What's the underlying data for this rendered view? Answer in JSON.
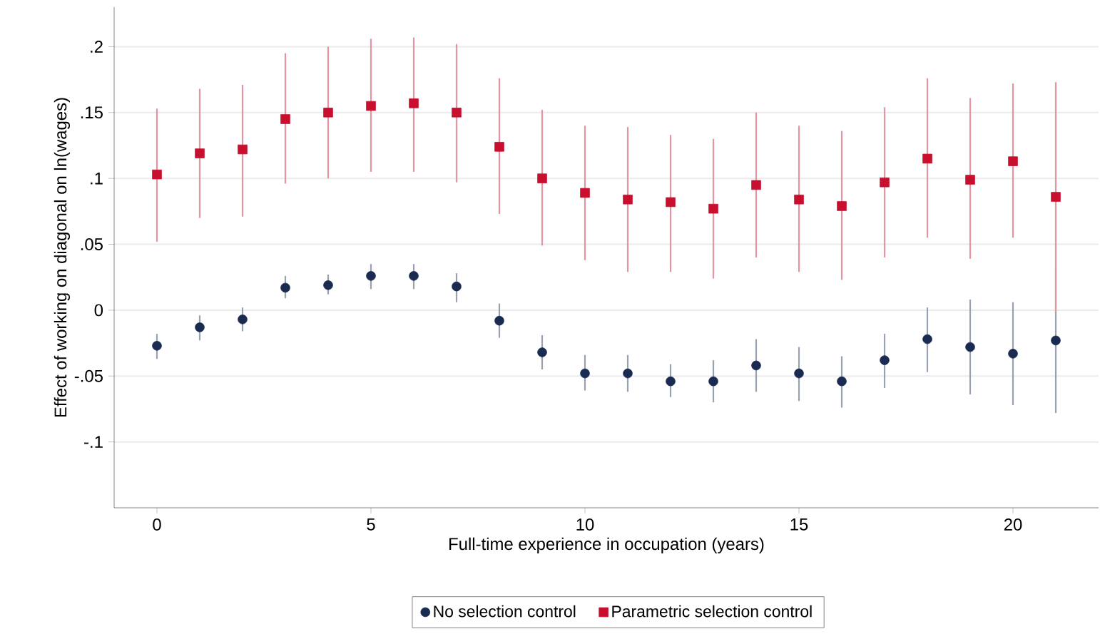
{
  "chart_data": {
    "type": "scatter",
    "xlabel": "Full-time experience in occupation (years)",
    "ylabel": "Effect of working on diagonal on ln(wages)",
    "x": [
      0,
      1,
      2,
      3,
      4,
      5,
      6,
      7,
      8,
      9,
      10,
      11,
      12,
      13,
      14,
      15,
      16,
      17,
      18,
      19,
      20,
      21
    ],
    "xlim": [
      -1,
      22
    ],
    "xticks": [
      0,
      5,
      10,
      15,
      20
    ],
    "ylim": [
      -0.15,
      0.23
    ],
    "yticks": [
      {
        "value": -0.1,
        "label": "-.1"
      },
      {
        "value": -0.05,
        "label": "-.05"
      },
      0,
      {
        "value": 0.05,
        "label": ".05"
      },
      {
        "value": 0.1,
        "label": ".1"
      },
      {
        "value": 0.15,
        "label": ".15"
      },
      {
        "value": 0.2,
        "label": ".2"
      }
    ],
    "grid": "y",
    "legend": "bottom",
    "series": [
      {
        "name": "No selection control",
        "color": "#1a2b52",
        "marker": "circle",
        "values": [
          -0.027,
          -0.013,
          -0.007,
          0.017,
          0.019,
          0.026,
          0.026,
          0.018,
          -0.008,
          -0.032,
          -0.048,
          -0.048,
          -0.054,
          -0.054,
          -0.042,
          -0.048,
          -0.054,
          -0.038,
          -0.022,
          -0.028,
          -0.033,
          -0.023
        ],
        "errors": [
          [
            -0.037,
            -0.018
          ],
          [
            -0.023,
            -0.004
          ],
          [
            -0.016,
            0.002
          ],
          [
            0.009,
            0.026
          ],
          [
            0.012,
            0.027
          ],
          [
            0.016,
            0.035
          ],
          [
            0.016,
            0.035
          ],
          [
            0.006,
            0.028
          ],
          [
            -0.021,
            0.005
          ],
          [
            -0.045,
            -0.019
          ],
          [
            -0.061,
            -0.034
          ],
          [
            -0.062,
            -0.034
          ],
          [
            -0.066,
            -0.041
          ],
          [
            -0.07,
            -0.038
          ],
          [
            -0.062,
            -0.022
          ],
          [
            -0.069,
            -0.028
          ],
          [
            -0.074,
            -0.035
          ],
          [
            -0.059,
            -0.018
          ],
          [
            -0.047,
            0.002
          ],
          [
            -0.064,
            0.008
          ],
          [
            -0.072,
            0.006
          ],
          [
            -0.078,
            0.032
          ]
        ]
      },
      {
        "name": "Parametric selection control",
        "color": "#c8102e",
        "marker": "square",
        "values": [
          0.103,
          0.119,
          0.122,
          0.145,
          0.15,
          0.155,
          0.157,
          0.15,
          0.124,
          0.1,
          0.089,
          0.084,
          0.082,
          0.077,
          0.095,
          0.084,
          0.079,
          0.097,
          0.115,
          0.099,
          0.113,
          0.086
        ],
        "errors": [
          [
            0.052,
            0.153
          ],
          [
            0.07,
            0.168
          ],
          [
            0.071,
            0.171
          ],
          [
            0.096,
            0.195
          ],
          [
            0.1,
            0.2
          ],
          [
            0.105,
            0.206
          ],
          [
            0.105,
            0.207
          ],
          [
            0.097,
            0.202
          ],
          [
            0.073,
            0.176
          ],
          [
            0.049,
            0.152
          ],
          [
            0.038,
            0.14
          ],
          [
            0.029,
            0.139
          ],
          [
            0.029,
            0.133
          ],
          [
            0.024,
            0.13
          ],
          [
            0.04,
            0.15
          ],
          [
            0.029,
            0.14
          ],
          [
            0.023,
            0.136
          ],
          [
            0.04,
            0.154
          ],
          [
            0.055,
            0.176
          ],
          [
            0.039,
            0.161
          ],
          [
            0.055,
            0.172
          ],
          [
            -0.001,
            0.173
          ]
        ]
      }
    ]
  }
}
